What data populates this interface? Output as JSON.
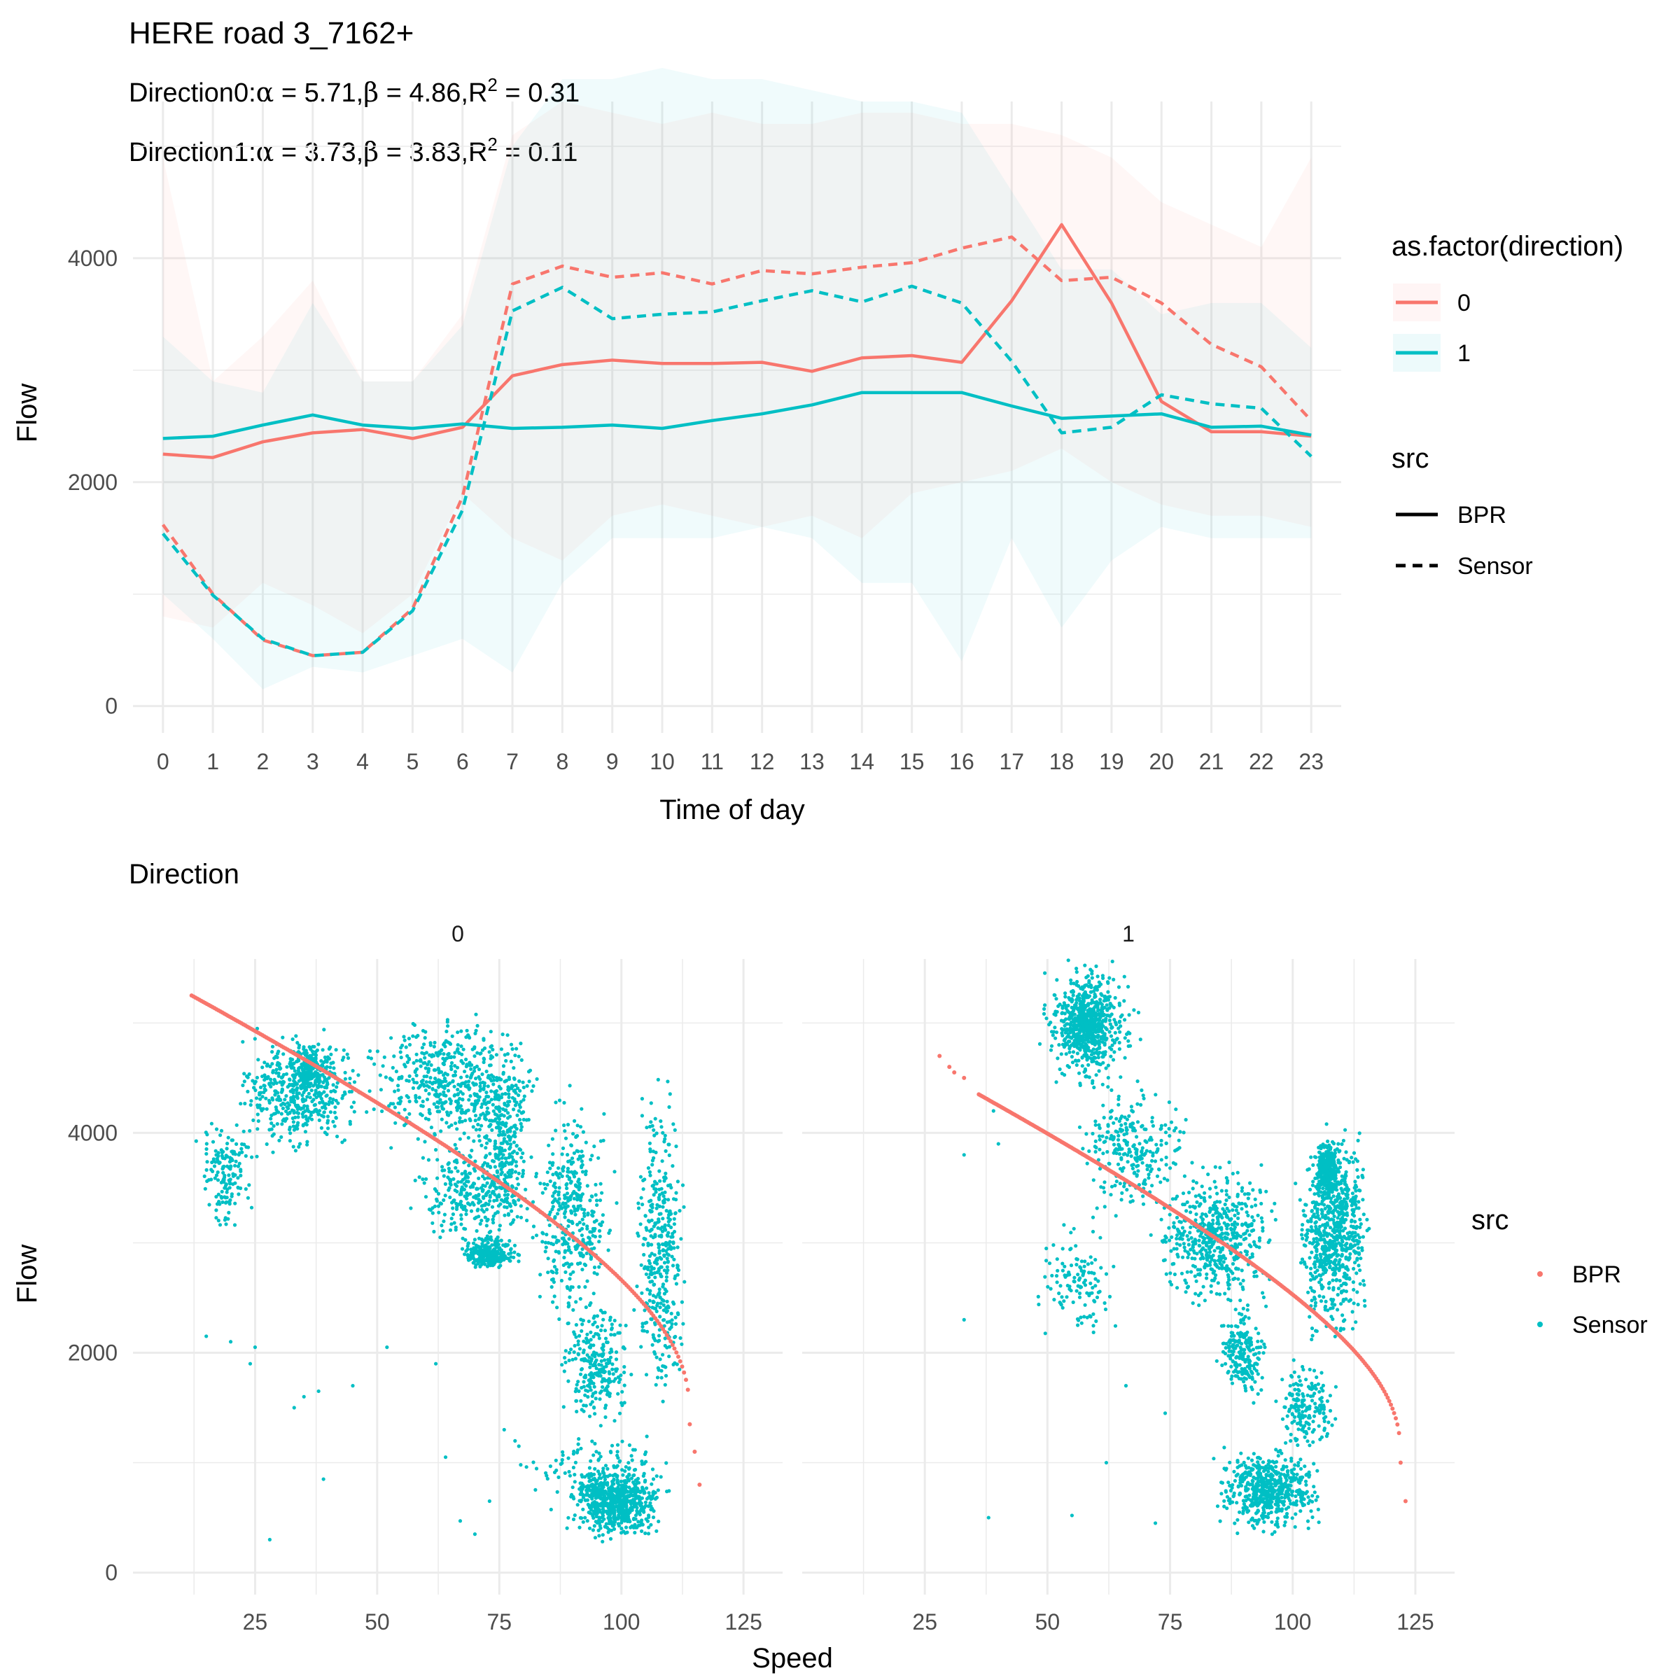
{
  "title": "HERE road 3_7162+",
  "subtitle_lines": [
    {
      "prefix": "Direction0:",
      "alpha": "5.71",
      "beta": "4.86",
      "r2": "0.31"
    },
    {
      "prefix": "Direction1:",
      "alpha": "3.73",
      "beta": "3.83",
      "r2": "0.11"
    }
  ],
  "colors": {
    "direction_0": "#F8766D",
    "direction_1": "#00BFC4",
    "grid": "#EBEBEB",
    "text": "#000000",
    "axis_text": "#4D4D4D"
  },
  "chart_data": [
    {
      "type": "line",
      "xlabel": "Time of day",
      "ylabel": "Flow",
      "ylim": [
        0,
        4800
      ],
      "x": [
        0,
        1,
        2,
        3,
        4,
        5,
        6,
        7,
        8,
        9,
        10,
        11,
        12,
        13,
        14,
        15,
        16,
        17,
        18,
        19,
        20,
        21,
        22,
        23
      ],
      "y_ticks": [
        0,
        2000,
        4000
      ],
      "series": [
        {
          "name": "0 BPR",
          "direction": "0",
          "src": "BPR",
          "values": [
            2250,
            2220,
            2360,
            2440,
            2470,
            2390,
            2490,
            2950,
            3050,
            3090,
            3060,
            3060,
            3070,
            2990,
            3110,
            3130,
            3070,
            3620,
            4300,
            3600,
            2720,
            2450,
            2450,
            2410
          ]
        },
        {
          "name": "0 Sensor",
          "direction": "0",
          "src": "Sensor",
          "values": [
            1620,
            1000,
            590,
            450,
            480,
            870,
            1870,
            3770,
            3930,
            3830,
            3870,
            3770,
            3890,
            3860,
            3920,
            3960,
            4090,
            4190,
            3800,
            3830,
            3600,
            3230,
            3030,
            2550
          ]
        },
        {
          "name": "1 BPR",
          "direction": "1",
          "src": "BPR",
          "values": [
            2390,
            2410,
            2510,
            2600,
            2510,
            2480,
            2520,
            2480,
            2490,
            2510,
            2480,
            2550,
            2610,
            2690,
            2800,
            2800,
            2800,
            2680,
            2570,
            2590,
            2610,
            2490,
            2500,
            2420
          ]
        },
        {
          "name": "1 Sensor",
          "direction": "1",
          "src": "Sensor",
          "values": [
            1540,
            990,
            600,
            450,
            480,
            850,
            1750,
            3530,
            3740,
            3460,
            3500,
            3520,
            3620,
            3710,
            3610,
            3750,
            3600,
            3080,
            2440,
            2490,
            2780,
            2700,
            2660,
            2230
          ]
        }
      ],
      "bands": [
        {
          "direction": "0",
          "lower": [
            800,
            700,
            1100,
            900,
            650,
            1000,
            1900,
            1500,
            1300,
            1700,
            1800,
            1700,
            1600,
            1700,
            1500,
            1900,
            2000,
            2100,
            2300,
            2000,
            1800,
            1700,
            1700,
            1600
          ],
          "upper": [
            4900,
            2900,
            3300,
            3800,
            2900,
            2900,
            3500,
            5100,
            5400,
            5300,
            5200,
            5300,
            5200,
            5200,
            5300,
            5300,
            5200,
            5200,
            5100,
            4900,
            4500,
            4300,
            4100,
            4900
          ]
        },
        {
          "direction": "1",
          "lower": [
            1000,
            600,
            150,
            350,
            300,
            450,
            600,
            300,
            1100,
            1500,
            1500,
            1500,
            1600,
            1500,
            1100,
            1100,
            400,
            1500,
            700,
            1300,
            1600,
            1500,
            1500,
            1500
          ],
          "upper": [
            3300,
            2900,
            2800,
            3600,
            2900,
            2900,
            3400,
            5000,
            5600,
            5600,
            5700,
            5600,
            5600,
            5500,
            5400,
            5400,
            5300,
            4600,
            3900,
            3900,
            3500,
            3600,
            3600,
            3200
          ]
        }
      ],
      "legends": [
        {
          "title": "as.factor(direction)",
          "entries": [
            "0",
            "1"
          ]
        },
        {
          "title": "src",
          "entries": [
            "BPR",
            "Sensor"
          ]
        }
      ]
    },
    {
      "type": "scatter",
      "title": "Direction",
      "xlabel": "Speed",
      "ylabel": "Flow",
      "xlim": [
        10,
        128
      ],
      "ylim": [
        0,
        5700
      ],
      "x_ticks": [
        25,
        50,
        75,
        100,
        125
      ],
      "y_ticks": [
        0,
        2000,
        4000
      ],
      "facets": [
        {
          "label": "0",
          "bpr_curve": {
            "speed_from": 12,
            "speed_to": 114,
            "flow_from": 5250,
            "flow_to": 1350,
            "extra_points": [
              [
                115,
                1100
              ],
              [
                116,
                800
              ]
            ]
          },
          "sensor_clusters": [
            {
              "x": [
                12,
                26
              ],
              "y": [
                3000,
                4300
              ],
              "n": 160
            },
            {
              "x": [
                18,
                50
              ],
              "y": [
                3700,
                5050
              ],
              "n": 420
            },
            {
              "x": [
                30,
                42
              ],
              "y": [
                4200,
                4900
              ],
              "n": 220
            },
            {
              "x": [
                44,
                86
              ],
              "y": [
                3700,
                5200
              ],
              "n": 520
            },
            {
              "x": [
                55,
                85
              ],
              "y": [
                2900,
                4000
              ],
              "n": 320
            },
            {
              "x": [
                66,
                80
              ],
              "y": [
                2700,
                3100
              ],
              "n": 260
            },
            {
              "x": [
                70,
                82
              ],
              "y": [
                3100,
                4900
              ],
              "n": 240
            },
            {
              "x": [
                80,
                100
              ],
              "y": [
                2100,
                4500
              ],
              "n": 380
            },
            {
              "x": [
                86,
                104
              ],
              "y": [
                1200,
                2600
              ],
              "n": 260
            },
            {
              "x": [
                102,
                114
              ],
              "y": [
                1200,
                4700
              ],
              "n": 380
            },
            {
              "x": [
                88,
                110
              ],
              "y": [
                250,
                1000
              ],
              "n": 620
            },
            {
              "x": [
                76,
                116
              ],
              "y": [
                400,
                1400
              ],
              "n": 160
            }
          ],
          "sensor_outliers": [
            [
              15,
              2150
            ],
            [
              20,
              2100
            ],
            [
              24,
              1900
            ],
            [
              25,
              2050
            ],
            [
              28,
              300
            ],
            [
              33,
              1500
            ],
            [
              35,
              1600
            ],
            [
              38,
              1650
            ],
            [
              39,
              850
            ],
            [
              45,
              1700
            ],
            [
              52,
              2050
            ],
            [
              62,
              1900
            ],
            [
              64,
              1050
            ],
            [
              67,
              470
            ],
            [
              70,
              350
            ],
            [
              73,
              650
            ],
            [
              76,
              1300
            ],
            [
              79,
              1150
            ]
          ]
        },
        {
          "label": "1",
          "bpr_curve": {
            "speed_from": 36,
            "speed_to": 122,
            "flow_from": 4350,
            "flow_to": 1000,
            "extra_points": [
              [
                28,
                4700
              ],
              [
                30,
                4600
              ],
              [
                31,
                4550
              ],
              [
                33,
                4500
              ],
              [
                123,
                650
              ]
            ]
          },
          "sensor_clusters": [
            {
              "x": [
                47,
                70
              ],
              "y": [
                4300,
                5650
              ],
              "n": 460
            },
            {
              "x": [
                52,
                64
              ],
              "y": [
                4600,
                5400
              ],
              "n": 300
            },
            {
              "x": [
                55,
                80
              ],
              "y": [
                3200,
                4500
              ],
              "n": 260
            },
            {
              "x": [
                70,
                98
              ],
              "y": [
                2300,
                3800
              ],
              "n": 560
            },
            {
              "x": [
                84,
                96
              ],
              "y": [
                1500,
                2500
              ],
              "n": 200
            },
            {
              "x": [
                95,
                110
              ],
              "y": [
                1000,
                2000
              ],
              "n": 180
            },
            {
              "x": [
                100,
                117
              ],
              "y": [
                2000,
                4200
              ],
              "n": 700
            },
            {
              "x": [
                104,
                110
              ],
              "y": [
                3300,
                4000
              ],
              "n": 240
            },
            {
              "x": [
                83,
                108
              ],
              "y": [
                300,
                1200
              ],
              "n": 580
            },
            {
              "x": [
                46,
                66
              ],
              "y": [
                2000,
                3300
              ],
              "n": 120
            }
          ],
          "sensor_outliers": [
            [
              33,
              2300
            ],
            [
              33,
              3800
            ],
            [
              38,
              500
            ],
            [
              39,
              4200
            ],
            [
              40,
              3900
            ],
            [
              55,
              520
            ],
            [
              62,
              1000
            ],
            [
              72,
              450
            ],
            [
              74,
              1450
            ],
            [
              66,
              1700
            ]
          ]
        }
      ],
      "legend": {
        "title": "src",
        "entries": [
          "BPR",
          "Sensor"
        ]
      }
    }
  ]
}
